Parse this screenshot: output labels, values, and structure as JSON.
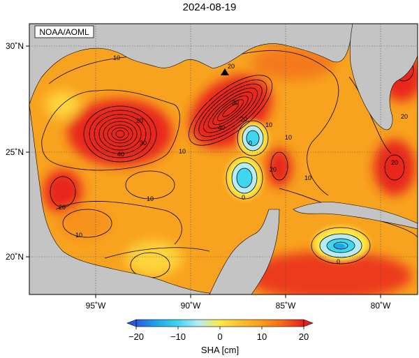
{
  "title": "2024-08-19",
  "credit": "NOAA/AOML",
  "map": {
    "lon_ticks": [
      {
        "value": -95,
        "label": "95˚W"
      },
      {
        "value": -90,
        "label": "90˚W"
      },
      {
        "value": -85,
        "label": "85˚W"
      },
      {
        "value": -80,
        "label": "80˚W"
      }
    ],
    "lat_ticks": [
      {
        "value": 30,
        "label": "30˚N"
      },
      {
        "value": 25,
        "label": "25˚N"
      },
      {
        "value": 20,
        "label": "20˚N"
      }
    ],
    "contour_labels": [
      "10",
      "20",
      "30",
      "40",
      "20",
      "30",
      "40",
      "10",
      "20",
      "0",
      "10",
      "20",
      "0",
      "10",
      "20",
      "10",
      "10",
      "0",
      "20",
      "20",
      "10"
    ]
  },
  "colorbar": {
    "title": "SHA [cm]",
    "ticks": [
      "−20",
      "−10",
      "0",
      "10",
      "20"
    ],
    "min": -20,
    "max": 20,
    "colors": [
      "#2a5ce0",
      "#1da7ea",
      "#3fd6f0",
      "#b5ecf5",
      "#fde946",
      "#fdc12d",
      "#fb9a1d",
      "#f5651a",
      "#e61f1f"
    ]
  },
  "colors": {
    "land": "#c4c4c4",
    "ocean_base": "#f8a31f",
    "warm": "#e8251d",
    "cold": "#3fd6f0"
  }
}
